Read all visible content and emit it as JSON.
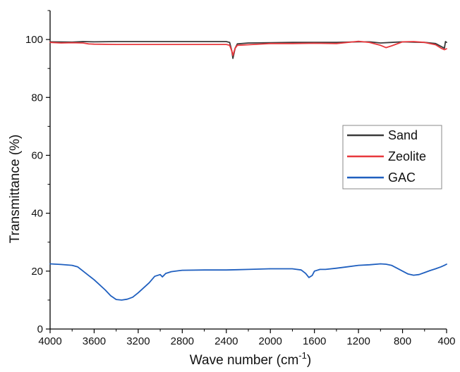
{
  "chart_data": {
    "type": "line",
    "title": "",
    "xlabel": "Wave number (cm",
    "xlabel_sup": "-1",
    "xlabel_close": ")",
    "ylabel": "Transmittance (%)",
    "xlim": [
      4000,
      400
    ],
    "ylim": [
      0,
      110
    ],
    "x_ticks": [
      "4000",
      "3600",
      "3200",
      "2800",
      "2400",
      "2000",
      "1600",
      "1200",
      "800",
      "400"
    ],
    "y_ticks": [
      "0",
      "20",
      "40",
      "60",
      "80",
      "100"
    ],
    "legend_position": "right-middle",
    "grid": false,
    "series": [
      {
        "name": "Sand",
        "color": "#3a3a3a",
        "x": [
          4000,
          3800,
          3700,
          3600,
          3400,
          3200,
          3000,
          2800,
          2600,
          2400,
          2370,
          2350,
          2340,
          2320,
          2300,
          2200,
          2000,
          1800,
          1600,
          1400,
          1200,
          1100,
          1000,
          900,
          800,
          700,
          600,
          500,
          420,
          410,
          400
        ],
        "y": [
          99.2,
          99.1,
          99.3,
          99.2,
          99.3,
          99.3,
          99.3,
          99.3,
          99.3,
          99.3,
          99.0,
          96.0,
          93.5,
          97.0,
          98.5,
          98.8,
          98.9,
          99.0,
          99.0,
          99.0,
          99.2,
          99.2,
          98.8,
          99.0,
          99.2,
          99.1,
          99.0,
          98.6,
          97.0,
          99.3,
          99.0
        ]
      },
      {
        "name": "Zeolite",
        "color": "#e8383d",
        "x": [
          4000,
          3900,
          3800,
          3700,
          3650,
          3600,
          3400,
          3200,
          3000,
          2800,
          2600,
          2400,
          2370,
          2350,
          2340,
          2320,
          2300,
          2200,
          2000,
          1800,
          1600,
          1400,
          1200,
          1100,
          1000,
          950,
          900,
          800,
          700,
          600,
          500,
          450,
          420,
          400
        ],
        "y": [
          99.0,
          98.8,
          98.9,
          98.8,
          98.5,
          98.4,
          98.3,
          98.3,
          98.3,
          98.3,
          98.3,
          98.3,
          98.0,
          96.0,
          94.5,
          97.0,
          98.0,
          98.2,
          98.6,
          98.6,
          98.7,
          98.6,
          99.4,
          99.0,
          98.0,
          97.2,
          97.8,
          99.2,
          99.3,
          99.0,
          98.2,
          97.0,
          96.5,
          96.8
        ]
      },
      {
        "name": "GAC",
        "color": "#1f5fbf",
        "x": [
          4000,
          3900,
          3800,
          3750,
          3700,
          3600,
          3500,
          3450,
          3400,
          3350,
          3300,
          3250,
          3200,
          3100,
          3050,
          3000,
          2980,
          2950,
          2900,
          2800,
          2600,
          2400,
          2300,
          2200,
          2000,
          1800,
          1720,
          1680,
          1650,
          1620,
          1600,
          1550,
          1500,
          1400,
          1300,
          1200,
          1100,
          1000,
          950,
          900,
          850,
          800,
          750,
          700,
          650,
          600,
          550,
          500,
          450,
          420,
          400
        ],
        "y": [
          22.5,
          22.3,
          22.0,
          21.5,
          20.0,
          17.0,
          13.5,
          11.5,
          10.2,
          10.0,
          10.3,
          11.0,
          12.5,
          16.0,
          18.2,
          18.8,
          18.0,
          19.2,
          19.8,
          20.3,
          20.4,
          20.4,
          20.5,
          20.6,
          20.8,
          20.8,
          20.4,
          19.2,
          17.8,
          18.5,
          20.0,
          20.6,
          20.6,
          21.0,
          21.5,
          22.0,
          22.2,
          22.5,
          22.4,
          22.0,
          21.0,
          20.0,
          19.0,
          18.6,
          18.8,
          19.5,
          20.2,
          20.8,
          21.5,
          22.0,
          22.4
        ]
      }
    ]
  }
}
